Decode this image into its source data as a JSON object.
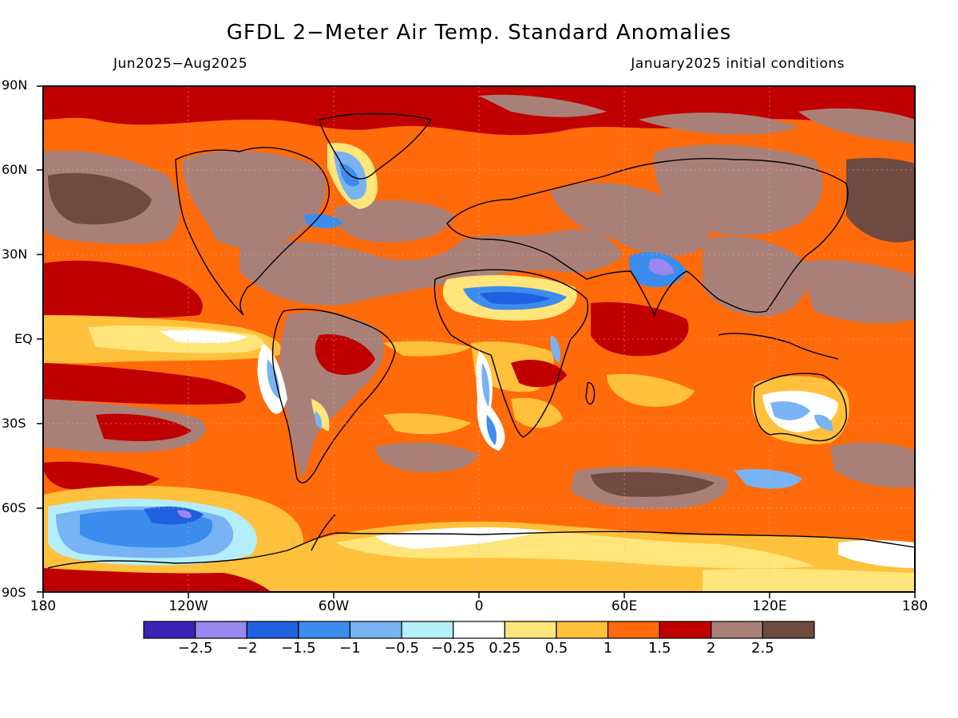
{
  "title": "GFDL 2−Meter Air Temp. Standard Anomalies",
  "period": "Jun2025−Aug2025",
  "init": "January2025 initial conditions",
  "lat_labels": [
    "90N",
    "60N",
    "30N",
    "EQ",
    "30S",
    "60S",
    "90S"
  ],
  "lon_labels": [
    "180",
    "120W",
    "60W",
    "0",
    "60E",
    "120E",
    "180"
  ],
  "colorbar": {
    "colors": [
      "#3d23b5",
      "#9b87f0",
      "#2060e0",
      "#3c8cee",
      "#78b4f4",
      "#b4eef8",
      "#ffffff",
      "#ffe57a",
      "#ffc03c",
      "#ff6a0a",
      "#c00000",
      "#a98078",
      "#6e4a40"
    ],
    "labels": [
      "−2.5",
      "−2",
      "−1.5",
      "−1",
      "−0.5",
      "−0.25",
      "0.25",
      "0.5",
      "1",
      "1.5",
      "2",
      "2.5"
    ]
  }
}
